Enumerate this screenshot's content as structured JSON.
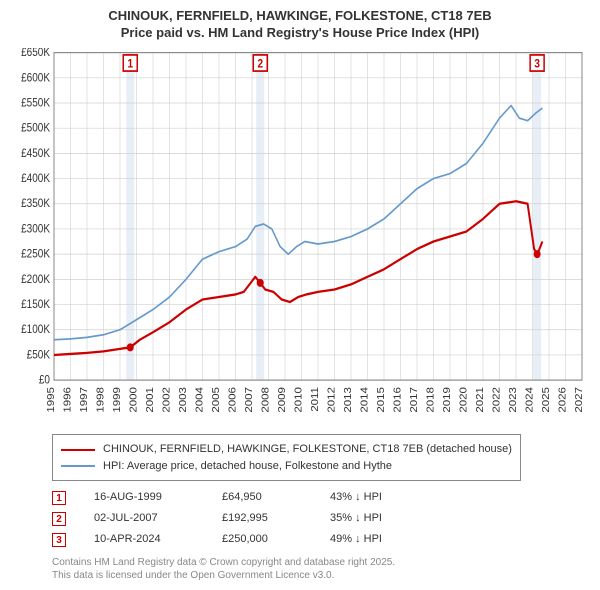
{
  "title": {
    "line1": "CHINOUK, FERNFIELD, HAWKINGE, FOLKESTONE, CT18 7EB",
    "line2": "Price paid vs. HM Land Registry's House Price Index (HPI)"
  },
  "chart": {
    "type": "line",
    "background_color": "#ffffff",
    "grid_color": "#d0d0d0",
    "axis_color": "#888888",
    "tick_font_size": 10,
    "tick_color": "#333333",
    "xlim": [
      1995,
      2027
    ],
    "xtick_step": 1,
    "xticks": [
      1995,
      1996,
      1997,
      1998,
      1999,
      2000,
      2001,
      2002,
      2003,
      2004,
      2005,
      2006,
      2007,
      2008,
      2009,
      2010,
      2011,
      2012,
      2013,
      2014,
      2015,
      2016,
      2017,
      2018,
      2019,
      2020,
      2021,
      2022,
      2023,
      2024,
      2025,
      2026,
      2027
    ],
    "ylim": [
      0,
      650000
    ],
    "ytick_step": 50000,
    "yticks": [
      0,
      50000,
      100000,
      150000,
      200000,
      250000,
      300000,
      350000,
      400000,
      450000,
      500000,
      550000,
      600000,
      650000
    ],
    "ytick_labels": [
      "£0",
      "£50K",
      "£100K",
      "£150K",
      "£200K",
      "£250K",
      "£300K",
      "£350K",
      "£400K",
      "£450K",
      "£500K",
      "£550K",
      "£600K",
      "£650K"
    ],
    "series": [
      {
        "id": "price_paid",
        "label": "CHINOUK, FERNFIELD, HAWKINGE, FOLKESTONE, CT18 7EB (detached house)",
        "color": "#cc0000",
        "line_width": 2,
        "data": [
          [
            1995.0,
            50000
          ],
          [
            1996.0,
            52000
          ],
          [
            1997.0,
            54000
          ],
          [
            1998.0,
            57000
          ],
          [
            1999.0,
            62000
          ],
          [
            1999.62,
            65000
          ],
          [
            2000.2,
            80000
          ],
          [
            2001.0,
            95000
          ],
          [
            2002.0,
            115000
          ],
          [
            2003.0,
            140000
          ],
          [
            2004.0,
            160000
          ],
          [
            2005.0,
            165000
          ],
          [
            2006.0,
            170000
          ],
          [
            2006.5,
            175000
          ],
          [
            2007.2,
            205000
          ],
          [
            2007.5,
            193000
          ],
          [
            2007.8,
            180000
          ],
          [
            2008.3,
            175000
          ],
          [
            2008.8,
            160000
          ],
          [
            2009.3,
            155000
          ],
          [
            2009.8,
            165000
          ],
          [
            2010.3,
            170000
          ],
          [
            2011.0,
            175000
          ],
          [
            2012.0,
            180000
          ],
          [
            2013.0,
            190000
          ],
          [
            2014.0,
            205000
          ],
          [
            2015.0,
            220000
          ],
          [
            2016.0,
            240000
          ],
          [
            2017.0,
            260000
          ],
          [
            2018.0,
            275000
          ],
          [
            2019.0,
            285000
          ],
          [
            2020.0,
            295000
          ],
          [
            2021.0,
            320000
          ],
          [
            2022.0,
            350000
          ],
          [
            2023.0,
            355000
          ],
          [
            2023.7,
            350000
          ],
          [
            2024.1,
            260000
          ],
          [
            2024.3,
            250000
          ],
          [
            2024.6,
            275000
          ]
        ]
      },
      {
        "id": "hpi",
        "label": "HPI: Average price, detached house, Folkestone and Hythe",
        "color": "#6699cc",
        "line_width": 1.5,
        "data": [
          [
            1995.0,
            80000
          ],
          [
            1996.0,
            82000
          ],
          [
            1997.0,
            85000
          ],
          [
            1998.0,
            90000
          ],
          [
            1999.0,
            100000
          ],
          [
            2000.0,
            120000
          ],
          [
            2001.0,
            140000
          ],
          [
            2002.0,
            165000
          ],
          [
            2003.0,
            200000
          ],
          [
            2004.0,
            240000
          ],
          [
            2005.0,
            255000
          ],
          [
            2006.0,
            265000
          ],
          [
            2006.7,
            280000
          ],
          [
            2007.2,
            305000
          ],
          [
            2007.7,
            310000
          ],
          [
            2008.2,
            300000
          ],
          [
            2008.7,
            265000
          ],
          [
            2009.2,
            250000
          ],
          [
            2009.7,
            265000
          ],
          [
            2010.2,
            275000
          ],
          [
            2011.0,
            270000
          ],
          [
            2012.0,
            275000
          ],
          [
            2013.0,
            285000
          ],
          [
            2014.0,
            300000
          ],
          [
            2015.0,
            320000
          ],
          [
            2016.0,
            350000
          ],
          [
            2017.0,
            380000
          ],
          [
            2018.0,
            400000
          ],
          [
            2019.0,
            410000
          ],
          [
            2020.0,
            430000
          ],
          [
            2021.0,
            470000
          ],
          [
            2022.0,
            520000
          ],
          [
            2022.7,
            545000
          ],
          [
            2023.2,
            520000
          ],
          [
            2023.7,
            515000
          ],
          [
            2024.2,
            530000
          ],
          [
            2024.6,
            540000
          ]
        ]
      }
    ],
    "sale_bands": [
      {
        "x": 1999.62,
        "color": "#e8eef5"
      },
      {
        "x": 2007.5,
        "color": "#e8eef5"
      },
      {
        "x": 2024.28,
        "color": "#e8eef5"
      }
    ],
    "sale_markers": [
      {
        "n": "1",
        "x": 1999.62,
        "y": 64950,
        "box_color": "#cc0000"
      },
      {
        "n": "2",
        "x": 2007.5,
        "y": 192995,
        "box_color": "#cc0000"
      },
      {
        "n": "3",
        "x": 2024.28,
        "y": 250000,
        "box_color": "#cc0000"
      }
    ]
  },
  "legend": {
    "border_color": "#888888",
    "items": [
      {
        "color": "#cc0000",
        "label": "CHINOUK, FERNFIELD, HAWKINGE, FOLKESTONE, CT18 7EB (detached house)"
      },
      {
        "color": "#6699cc",
        "label": "HPI: Average price, detached house, Folkestone and Hythe"
      }
    ]
  },
  "sales_table": {
    "rows": [
      {
        "n": "1",
        "date": "16-AUG-1999",
        "price": "£64,950",
        "diff": "43% ↓ HPI"
      },
      {
        "n": "2",
        "date": "02-JUL-2007",
        "price": "£192,995",
        "diff": "35% ↓ HPI"
      },
      {
        "n": "3",
        "date": "10-APR-2024",
        "price": "£250,000",
        "diff": "49% ↓ HPI"
      }
    ]
  },
  "attribution": {
    "line1": "Contains HM Land Registry data © Crown copyright and database right 2025.",
    "line2": "This data is licensed under the Open Government Licence v3.0."
  },
  "layout": {
    "title_font_size": 13,
    "body_font_size": 11,
    "attribution_font_size": 10,
    "attribution_color": "#888888"
  }
}
